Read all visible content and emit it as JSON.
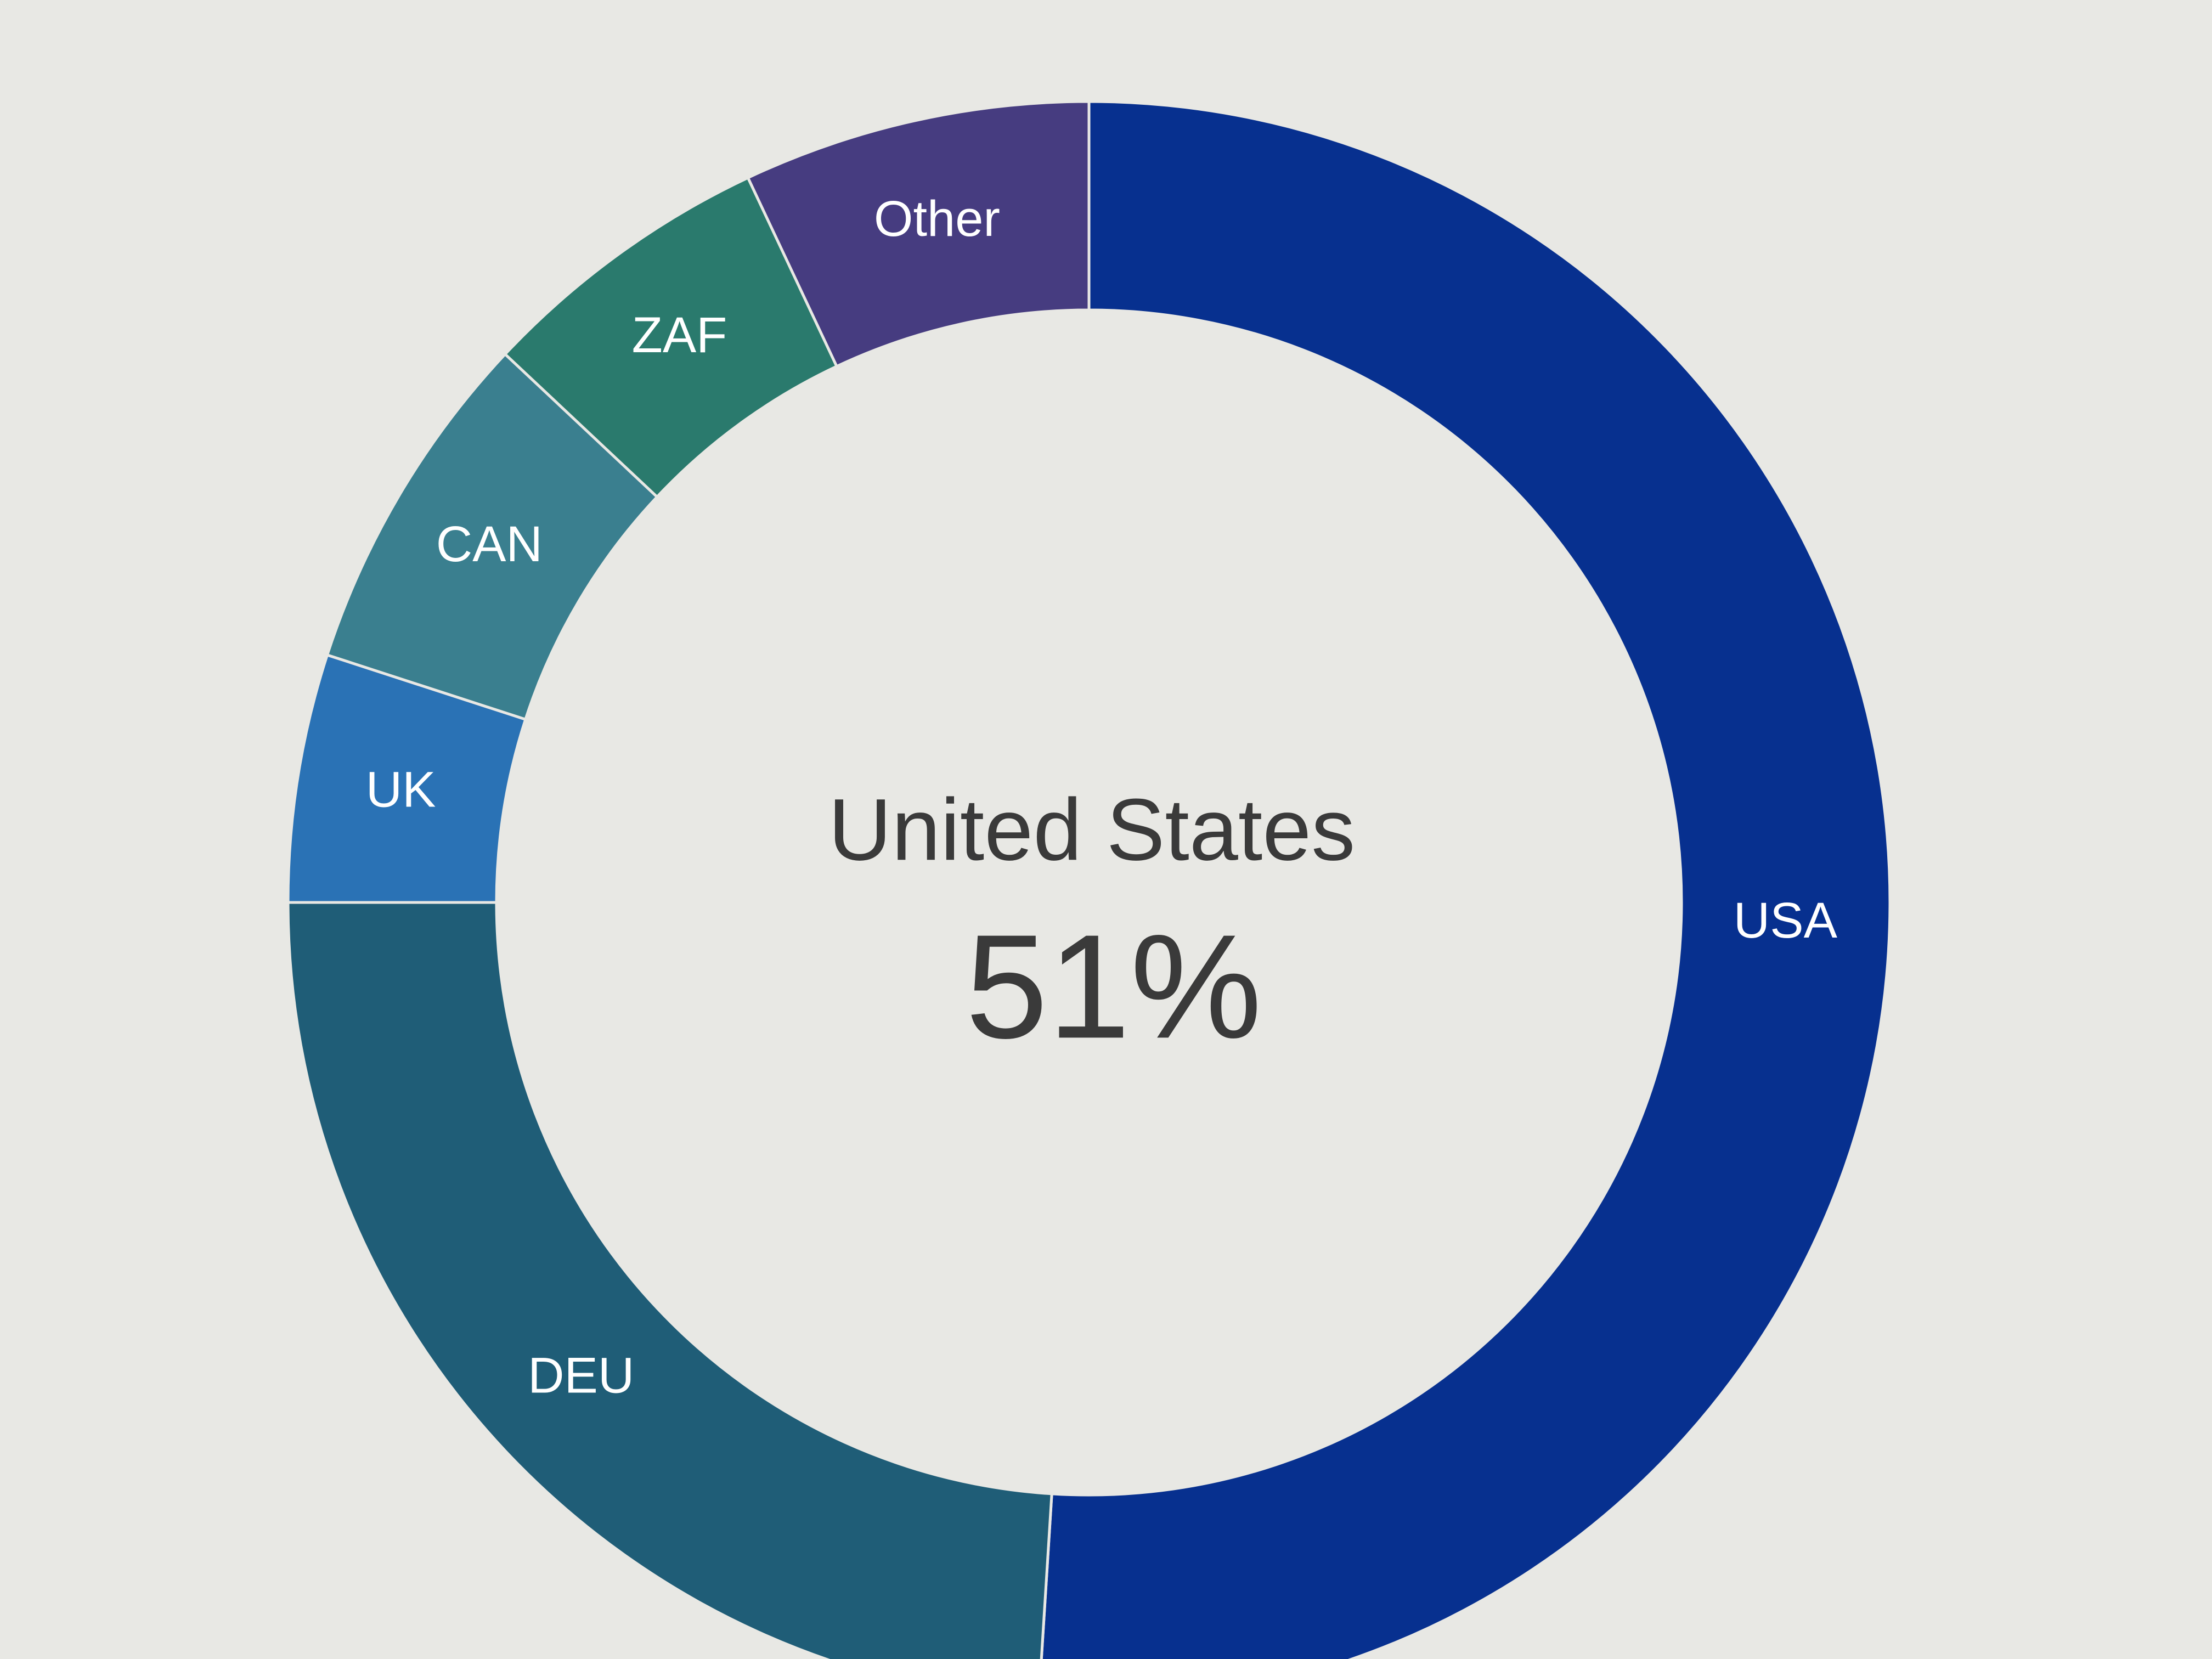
{
  "chart_data": {
    "type": "donut",
    "categories": [
      "USA",
      "DEU",
      "UK",
      "CAN",
      "ZAF",
      "Other"
    ],
    "values": [
      51,
      24,
      5,
      7,
      6,
      7
    ],
    "value_labels": [
      "51%",
      null,
      null,
      null,
      null,
      null
    ],
    "colors": [
      "#07308f",
      "#1f5d77",
      "#2a72b5",
      "#3a7f8f",
      "#2a7a6d",
      "#463c80"
    ],
    "center_title": "United States"
  }
}
